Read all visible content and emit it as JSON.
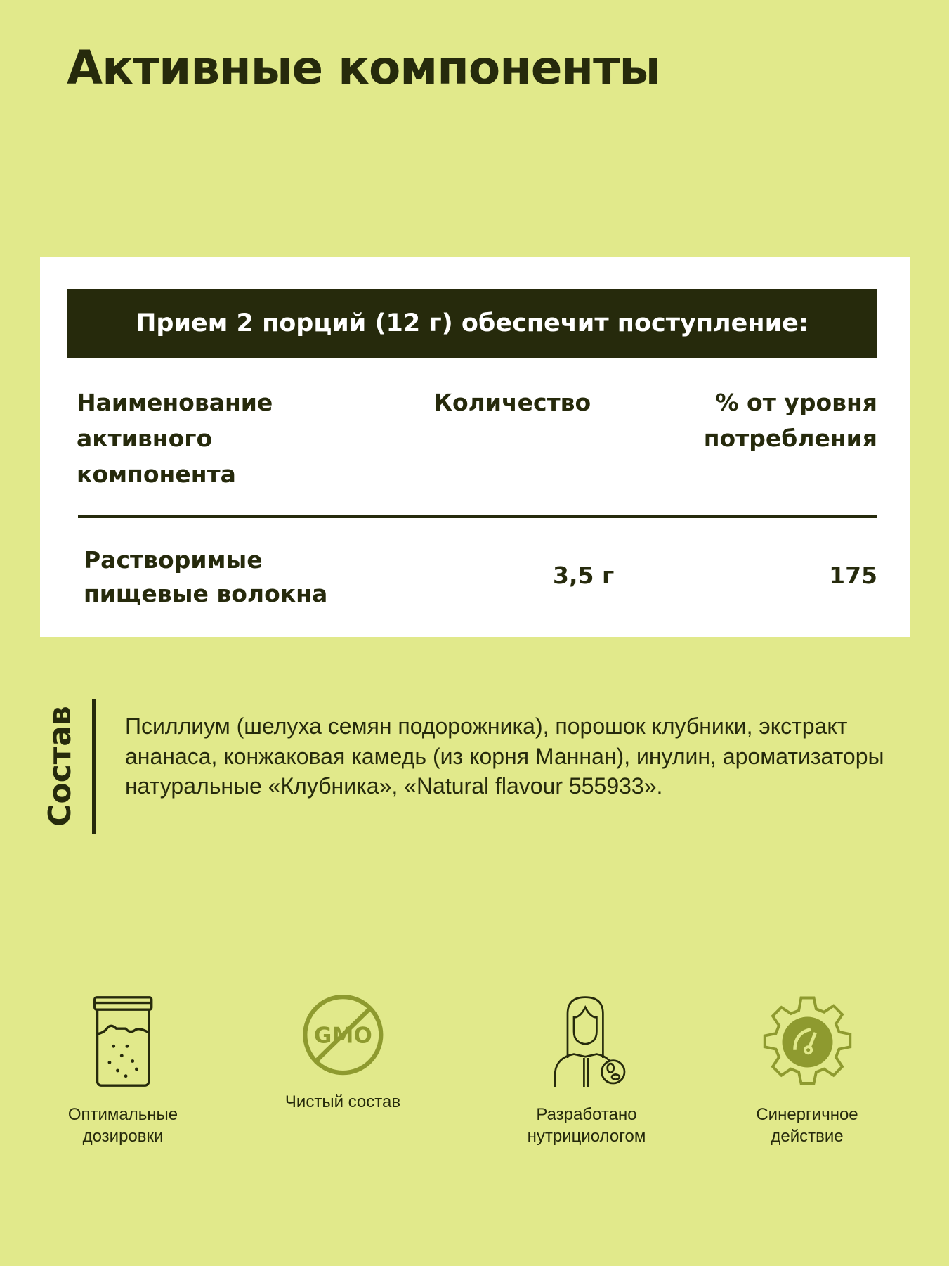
{
  "title": "Активные компоненты",
  "table": {
    "banner": "Прием 2 порций (12 г) обеспечит поступление:",
    "headers": [
      "Наименование\nактивного\nкомпонента",
      "Количество",
      "% от уровня\nпотребления"
    ],
    "rows": [
      {
        "name": "Растворимые\nпищевые волокна",
        "amount": "3,5 г",
        "percent": "175"
      }
    ]
  },
  "composition": {
    "label": "Состав",
    "text": "Псиллиум (шелуха семян подорожника), порошок клубники, экстракт ананаса, конжаковая камедь (из корня Маннан), инулин, ароматизаторы натуральные «Клубника», «Natural flavour 555933»."
  },
  "features": [
    {
      "icon": "jar-icon",
      "label": "Оптимальные\nдозировки"
    },
    {
      "icon": "no-gmo-icon",
      "label": "Чистый состав",
      "badge": "GMO"
    },
    {
      "icon": "nutritionist-icon",
      "label": "Разработано\nнутрициологом"
    },
    {
      "icon": "gear-gauge-icon",
      "label": "Синергичное\nдействие"
    }
  ],
  "colors": {
    "background": "#e1e98b",
    "dark": "#262a0c",
    "accent": "#8e9a2f",
    "card": "#ffffff"
  }
}
